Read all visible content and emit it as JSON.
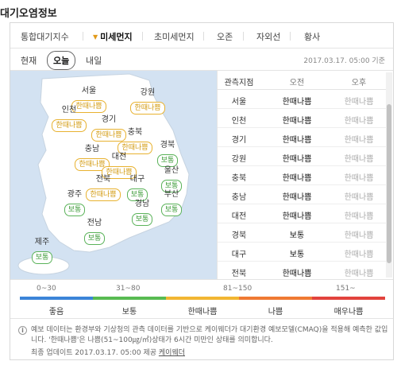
{
  "header": {
    "title": "대기오염정보"
  },
  "tabs": [
    {
      "label": "통합대기지수",
      "active": false
    },
    {
      "label": "미세먼지",
      "active": true
    },
    {
      "label": "초미세먼지",
      "active": false
    },
    {
      "label": "오존",
      "active": false
    },
    {
      "label": "자외선",
      "active": false
    },
    {
      "label": "황사",
      "active": false
    }
  ],
  "days": {
    "label": "현재",
    "today": "오늘",
    "tomorrow": "내일"
  },
  "base_time": "2017.03.17. 05:00 기준",
  "map": {
    "regions": [
      {
        "name": "서울",
        "grade": "한때나쁨",
        "level": "bad"
      },
      {
        "name": "강원",
        "grade": "한때나쁨",
        "level": "bad"
      },
      {
        "name": "인천",
        "grade": "한때나쁨",
        "level": "bad"
      },
      {
        "name": "경기",
        "grade": "한때나쁨",
        "level": "bad"
      },
      {
        "name": "충북",
        "grade": "한때나쁨",
        "level": "bad"
      },
      {
        "name": "충남",
        "grade": "한때나쁨",
        "level": "bad"
      },
      {
        "name": "대전",
        "grade": "한때나쁨",
        "level": "bad"
      },
      {
        "name": "경북",
        "grade": "보통",
        "level": "normal"
      },
      {
        "name": "전북",
        "grade": "한때나쁨",
        "level": "bad"
      },
      {
        "name": "대구",
        "grade": "보통",
        "level": "normal"
      },
      {
        "name": "울산",
        "grade": "보통",
        "level": "normal"
      },
      {
        "name": "광주",
        "grade": "보통",
        "level": "normal"
      },
      {
        "name": "경남",
        "grade": "보통",
        "level": "normal"
      },
      {
        "name": "부산",
        "grade": "보통",
        "level": "normal"
      },
      {
        "name": "전남",
        "grade": "보통",
        "level": "normal"
      },
      {
        "name": "제주",
        "grade": "보통",
        "level": "normal"
      }
    ]
  },
  "table": {
    "headers": [
      "관측지점",
      "오전",
      "오후"
    ],
    "rows": [
      {
        "station": "서울",
        "am": "한때나쁨",
        "pm": "한때나쁨"
      },
      {
        "station": "인천",
        "am": "한때나쁨",
        "pm": "한때나쁨"
      },
      {
        "station": "경기",
        "am": "한때나쁨",
        "pm": "한때나쁨"
      },
      {
        "station": "강원",
        "am": "한때나쁨",
        "pm": "한때나쁨"
      },
      {
        "station": "충북",
        "am": "한때나쁨",
        "pm": "한때나쁨"
      },
      {
        "station": "충남",
        "am": "한때나쁨",
        "pm": "한때나쁨"
      },
      {
        "station": "대전",
        "am": "한때나쁨",
        "pm": "한때나쁨"
      },
      {
        "station": "경북",
        "am": "보통",
        "pm": "한때나쁨"
      },
      {
        "station": "대구",
        "am": "보통",
        "pm": "한때나쁨"
      },
      {
        "station": "전북",
        "am": "한때나쁨",
        "pm": "한때나쁨"
      }
    ]
  },
  "legend": [
    {
      "range": "0~30",
      "name": "좋음",
      "color": "#3b84d8"
    },
    {
      "range": "31~80",
      "name": "보통",
      "color": "#58bb52"
    },
    {
      "range": "81~150",
      "name": "한때나쁨",
      "color": "#f2b632"
    },
    {
      "range": "",
      "name": "나쁨",
      "color": "#ef7a33"
    },
    {
      "range": "151~",
      "name": "매우나쁨",
      "color": "#e2433d"
    }
  ],
  "note": {
    "text": "예보 데이터는 환경부와 기상청의 관측 데이터를 기반으로 케이웨더가 대기환경 예보모델(CMAQ)을 적용해 예측한 값입니다. '한때나쁨'은 나쁨(51~100㎍/㎥)상태가 6시간 미만인 상태를 의미합니다.",
    "updated": "최종 업데이트 2017.03.17. 05:00 제공",
    "provider": "케이웨더"
  },
  "colors": {
    "accent": "#e29a1a",
    "sea": "#d3e2f2",
    "land": "#ffffff"
  }
}
